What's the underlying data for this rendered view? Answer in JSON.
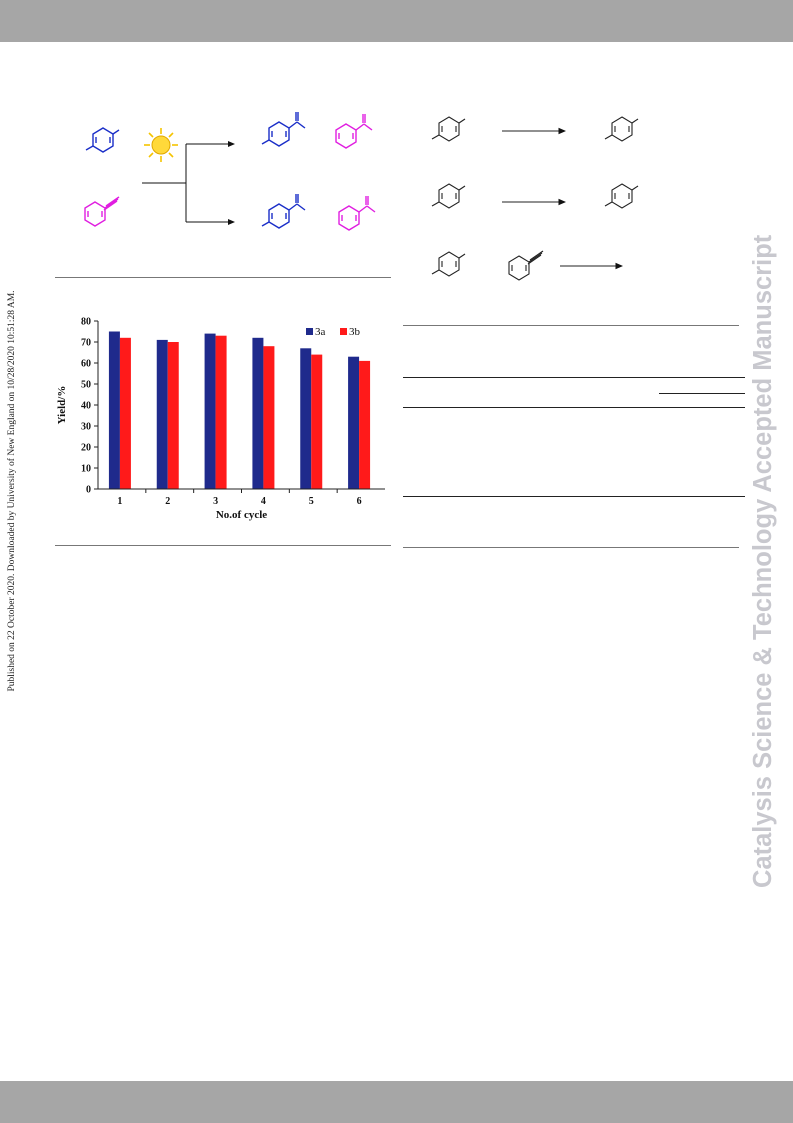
{
  "journal_watermark": "Catalysis Science & Technology Accepted Manuscript",
  "download_note": "Published on 22 October 2020. Downloaded by University of New England on 10/28/2020 10:51:28 AM.",
  "colors": {
    "header_bar": "#a6a6a6",
    "series_3a": "#1f2a8c",
    "series_3b": "#ff1a1a",
    "pink": "#e01ee0",
    "blue": "#1a2ec8",
    "sun": "#f5c400"
  },
  "icons": {
    "sun": "sun-icon"
  },
  "chart_data": {
    "type": "bar",
    "categories": [
      "1",
      "2",
      "3",
      "4",
      "5",
      "6"
    ],
    "series": [
      {
        "name": "3a",
        "values": [
          75,
          71,
          74,
          72,
          67,
          63
        ]
      },
      {
        "name": "3b",
        "values": [
          72,
          70,
          73,
          68,
          64,
          61
        ]
      }
    ],
    "title": "",
    "xlabel": "No.of cycle",
    "ylabel": "Yield/%",
    "ylim": [
      0,
      80
    ],
    "yticks": [
      0,
      10,
      20,
      30,
      40,
      50,
      60,
      70,
      80
    ],
    "grid": false,
    "legend": "top-right"
  }
}
